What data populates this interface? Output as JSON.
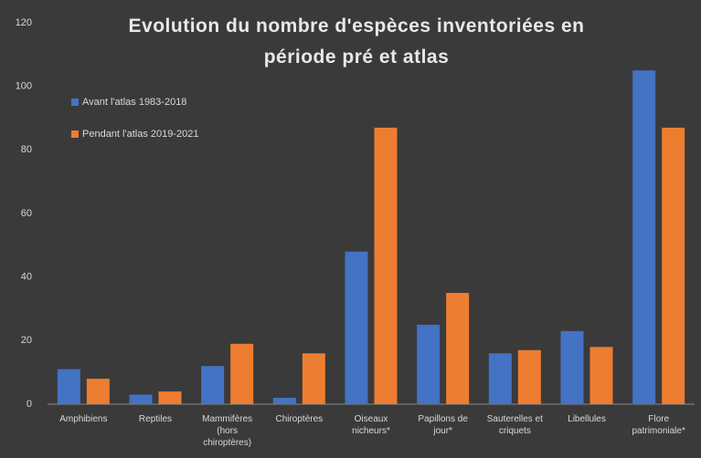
{
  "chart_data": {
    "type": "bar",
    "title": "Evolution du nombre d'espèces inventoriées en période pré et atlas",
    "categories": [
      "Amphibiens",
      "Reptiles",
      "Mammifères (hors chiroptères)",
      "Chiroptères",
      "Oiseaux nicheurs*",
      "Papillons de jour*",
      "Sauterelles et criquets",
      "Libellules",
      "Flore patrimoniale*"
    ],
    "series": [
      {
        "name": "Avant l'atlas 1983-2018",
        "color": "#4472c4",
        "values": [
          11,
          3,
          12,
          2,
          48,
          25,
          16,
          23,
          105
        ]
      },
      {
        "name": "Pendant l'atlas 2019-2021",
        "color": "#ed7d31",
        "values": [
          8,
          4,
          19,
          16,
          87,
          35,
          17,
          18,
          87
        ]
      }
    ],
    "ylim": [
      0,
      120
    ],
    "yticks": [
      0,
      20,
      40,
      60,
      80,
      100,
      120
    ],
    "grid": false,
    "legend": "upper left"
  }
}
